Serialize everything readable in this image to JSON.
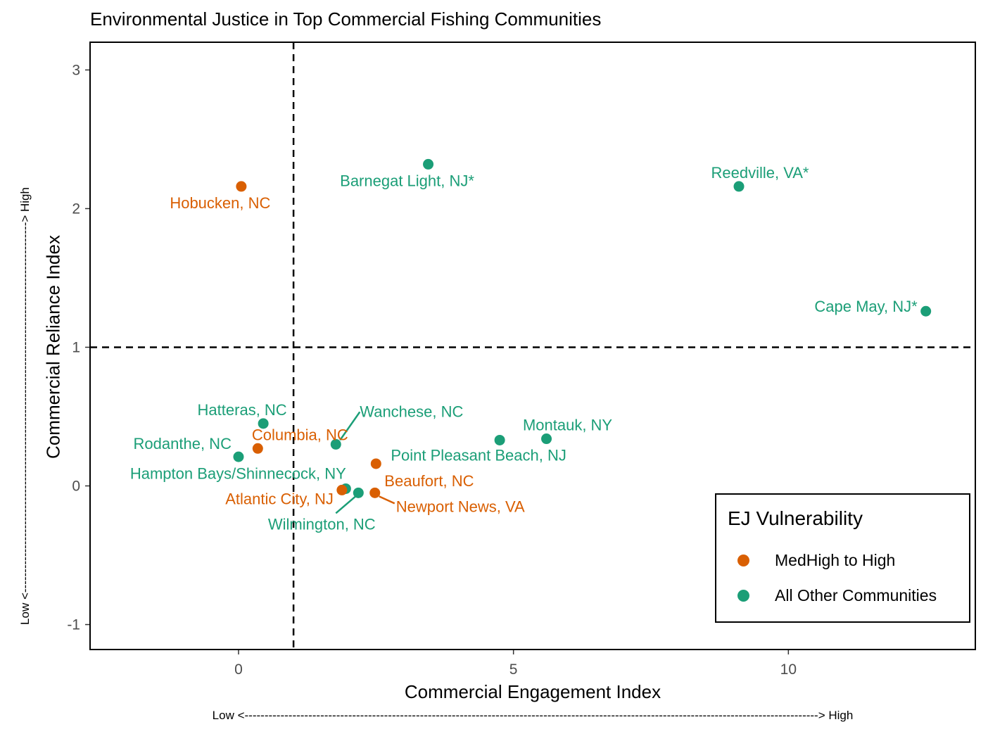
{
  "chart_data": {
    "type": "scatter",
    "title": "Environmental Justice in Top Commercial Fishing Communities",
    "xlabel": "Commercial Engagement Index",
    "ylabel": "Commercial Reliance Index",
    "x_note": "Low <------------------------------------------------------------------------------------------------------------------------------------------------> High",
    "y_note": "Low <---------------------------------------------------------------------------------------------> High",
    "xlim": [
      -2.7,
      13.4
    ],
    "ylim": [
      -1.18,
      3.2
    ],
    "x_ticks": [
      0,
      5,
      10
    ],
    "y_ticks": [
      -1,
      0,
      1,
      2,
      3
    ],
    "reference_lines": {
      "x": 1,
      "y": 1,
      "style": "dashed"
    },
    "grid": false,
    "legend": {
      "title": "EJ Vulnerability",
      "position": "bottom-right",
      "entries": [
        {
          "label": "MedHigh to High",
          "color": "#D95F02"
        },
        {
          "label": "All Other Communities",
          "color": "#1B9E77"
        }
      ]
    },
    "colors": {
      "MedHigh to High": "#D95F02",
      "All Other Communities": "#1B9E77"
    },
    "points": [
      {
        "label": "Hobucken, NC",
        "x": 0.05,
        "y": 2.16,
        "group": "MedHigh to High"
      },
      {
        "label": "Barnegat Light, NJ*",
        "x": 3.45,
        "y": 2.32,
        "group": "All Other Communities"
      },
      {
        "label": "Reedville, VA*",
        "x": 9.1,
        "y": 2.16,
        "group": "All Other Communities"
      },
      {
        "label": "Cape May, NJ*",
        "x": 12.5,
        "y": 1.26,
        "group": "All Other Communities"
      },
      {
        "label": "Hatteras, NC",
        "x": 0.45,
        "y": 0.45,
        "group": "All Other Communities"
      },
      {
        "label": "Columbia, NC",
        "x": 0.35,
        "y": 0.27,
        "group": "MedHigh to High"
      },
      {
        "label": "Rodanthe, NC",
        "x": 0.0,
        "y": 0.21,
        "group": "All Other Communities"
      },
      {
        "label": "Wanchese, NC",
        "x": 1.77,
        "y": 0.3,
        "group": "All Other Communities"
      },
      {
        "label": "Montauk, NY",
        "x": 5.6,
        "y": 0.34,
        "group": "All Other Communities"
      },
      {
        "label": "Point Pleasant Beach, NJ",
        "x": 4.75,
        "y": 0.33,
        "group": "All Other Communities"
      },
      {
        "label": "Beaufort, NC",
        "x": 2.5,
        "y": 0.16,
        "group": "MedHigh to High"
      },
      {
        "label": "Hampton Bays/Shinnecock, NY",
        "x": 1.95,
        "y": -0.02,
        "group": "All Other Communities"
      },
      {
        "label": "Atlantic City, NJ",
        "x": 1.88,
        "y": -0.03,
        "group": "MedHigh to High"
      },
      {
        "label": "Wilmington, NC",
        "x": 2.18,
        "y": -0.05,
        "group": "All Other Communities"
      },
      {
        "label": "Newport News, VA",
        "x": 2.48,
        "y": -0.05,
        "group": "MedHigh to High"
      }
    ]
  }
}
